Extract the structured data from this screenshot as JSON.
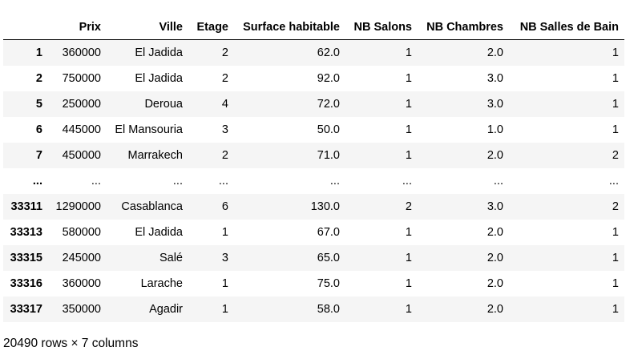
{
  "dataframe": {
    "index_header": "",
    "columns": [
      "Prix",
      "Ville",
      "Etage",
      "Surface habitable",
      "NB Salons",
      "NB Chambres",
      "NB Salles de Bain"
    ],
    "rows": [
      {
        "index": "1",
        "cells": [
          "360000",
          "El Jadida",
          "2",
          "62.0",
          "1",
          "2.0",
          "1"
        ]
      },
      {
        "index": "2",
        "cells": [
          "750000",
          "El Jadida",
          "2",
          "92.0",
          "1",
          "3.0",
          "1"
        ]
      },
      {
        "index": "5",
        "cells": [
          "250000",
          "Deroua",
          "4",
          "72.0",
          "1",
          "3.0",
          "1"
        ]
      },
      {
        "index": "6",
        "cells": [
          "445000",
          "El Mansouria",
          "3",
          "50.0",
          "1",
          "1.0",
          "1"
        ]
      },
      {
        "index": "7",
        "cells": [
          "450000",
          "Marrakech",
          "2",
          "71.0",
          "1",
          "2.0",
          "2"
        ]
      },
      {
        "index": "...",
        "cells": [
          "...",
          "...",
          "...",
          "...",
          "...",
          "...",
          "..."
        ]
      },
      {
        "index": "33311",
        "cells": [
          "1290000",
          "Casablanca",
          "6",
          "130.0",
          "2",
          "3.0",
          "2"
        ]
      },
      {
        "index": "33313",
        "cells": [
          "580000",
          "El Jadida",
          "1",
          "67.0",
          "1",
          "2.0",
          "1"
        ]
      },
      {
        "index": "33315",
        "cells": [
          "245000",
          "Salé",
          "3",
          "65.0",
          "1",
          "2.0",
          "1"
        ]
      },
      {
        "index": "33316",
        "cells": [
          "360000",
          "Larache",
          "1",
          "75.0",
          "1",
          "2.0",
          "1"
        ]
      },
      {
        "index": "33317",
        "cells": [
          "350000",
          "Agadir",
          "1",
          "58.0",
          "1",
          "2.0",
          "1"
        ]
      }
    ],
    "shape_note": "20490 rows × 7 columns"
  }
}
